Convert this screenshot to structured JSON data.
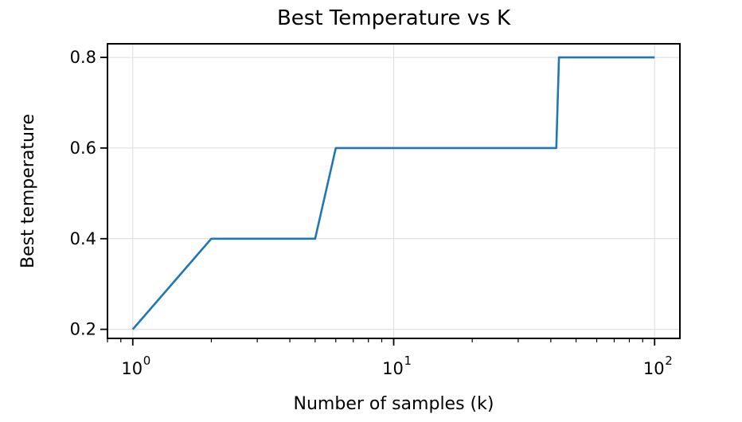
{
  "chart_data": {
    "type": "line",
    "title": "Best Temperature vs K",
    "xlabel": "Number of samples (k)",
    "ylabel": "Best temperature",
    "xscale": "log",
    "xlim": [
      0.8,
      125
    ],
    "ylim": [
      0.18,
      0.83
    ],
    "grid": true,
    "x_ticks": [
      {
        "base": "10",
        "exp": "0",
        "value": 1
      },
      {
        "base": "10",
        "exp": "1",
        "value": 10
      },
      {
        "base": "10",
        "exp": "2",
        "value": 100
      }
    ],
    "y_ticks": [
      {
        "label": "0.2",
        "value": 0.2
      },
      {
        "label": "0.4",
        "value": 0.4
      },
      {
        "label": "0.6",
        "value": 0.6
      },
      {
        "label": "0.8",
        "value": 0.8
      }
    ],
    "series": [
      {
        "color": "#1f77b4",
        "x": [
          1,
          2,
          5,
          6,
          10,
          20,
          42,
          43,
          100
        ],
        "y": [
          0.2,
          0.4,
          0.4,
          0.6,
          0.6,
          0.6,
          0.6,
          0.8,
          0.8
        ]
      }
    ]
  }
}
